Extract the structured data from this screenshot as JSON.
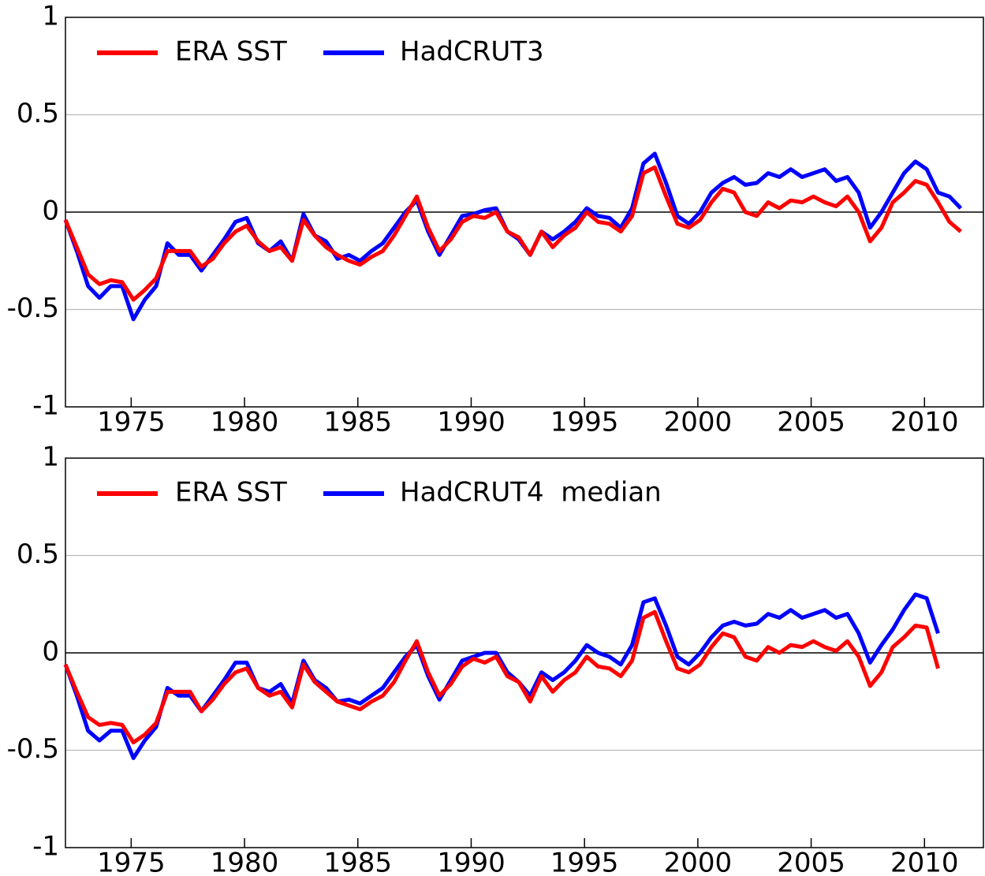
{
  "chart_data": [
    {
      "type": "line",
      "xlim": [
        1972.1,
        2012.6
      ],
      "xticks": [
        1975,
        1980,
        1985,
        1990,
        1995,
        2000,
        2005,
        2010
      ],
      "ylim": [
        -1,
        1
      ],
      "yticks": [
        -1,
        -0.5,
        0,
        0.5,
        1
      ],
      "grid": true,
      "legend": "upper left",
      "x": [
        1972.1,
        1972.6,
        1973.1,
        1973.6,
        1974.1,
        1974.6,
        1975.1,
        1975.6,
        1976.1,
        1976.6,
        1977.1,
        1977.6,
        1978.1,
        1978.6,
        1979.1,
        1979.6,
        1980.1,
        1980.6,
        1981.1,
        1981.6,
        1982.1,
        1982.6,
        1983.1,
        1983.6,
        1984.1,
        1984.6,
        1985.1,
        1985.6,
        1986.1,
        1986.6,
        1987.1,
        1987.6,
        1988.1,
        1988.6,
        1989.1,
        1989.6,
        1990.1,
        1990.6,
        1991.1,
        1991.6,
        1992.1,
        1992.6,
        1993.1,
        1993.6,
        1994.1,
        1994.6,
        1995.1,
        1995.6,
        1996.1,
        1996.6,
        1997.1,
        1997.6,
        1998.1,
        1998.6,
        1999.1,
        1999.6,
        2000.1,
        2000.6,
        2001.1,
        2001.6,
        2002.1,
        2002.6,
        2003.1,
        2003.6,
        2004.1,
        2004.6,
        2005.1,
        2005.6,
        2006.1,
        2006.6,
        2007.1,
        2007.6,
        2008.1,
        2008.6,
        2009.1,
        2009.6,
        2010.1,
        2010.6,
        2011.1,
        2011.6
      ],
      "series": [
        {
          "name": "HadCRUT3",
          "color": "#0000ff",
          "values": [
            -0.04,
            -0.2,
            -0.38,
            -0.44,
            -0.38,
            -0.38,
            -0.55,
            -0.45,
            -0.38,
            -0.16,
            -0.22,
            -0.22,
            -0.3,
            -0.22,
            -0.14,
            -0.05,
            -0.03,
            -0.16,
            -0.2,
            -0.15,
            -0.25,
            -0.01,
            -0.12,
            -0.15,
            -0.24,
            -0.22,
            -0.25,
            -0.2,
            -0.16,
            -0.08,
            0.0,
            0.06,
            -0.1,
            -0.22,
            -0.12,
            -0.02,
            -0.01,
            0.01,
            0.02,
            -0.1,
            -0.14,
            -0.22,
            -0.1,
            -0.14,
            -0.1,
            -0.05,
            0.02,
            -0.02,
            -0.03,
            -0.08,
            0.02,
            0.25,
            0.3,
            0.15,
            -0.02,
            -0.06,
            0.0,
            0.1,
            0.15,
            0.18,
            0.14,
            0.15,
            0.2,
            0.18,
            0.22,
            0.18,
            0.2,
            0.22,
            0.16,
            0.18,
            0.1,
            -0.08,
            0.0,
            0.1,
            0.2,
            0.26,
            0.22,
            0.1,
            0.08,
            0.02
          ]
        },
        {
          "name": "ERA SST",
          "color": "#ff0000",
          "values": [
            -0.04,
            -0.18,
            -0.32,
            -0.37,
            -0.35,
            -0.36,
            -0.45,
            -0.4,
            -0.34,
            -0.2,
            -0.2,
            -0.2,
            -0.28,
            -0.24,
            -0.16,
            -0.1,
            -0.07,
            -0.15,
            -0.2,
            -0.18,
            -0.25,
            -0.04,
            -0.12,
            -0.18,
            -0.22,
            -0.25,
            -0.27,
            -0.23,
            -0.2,
            -0.12,
            -0.02,
            0.08,
            -0.08,
            -0.2,
            -0.14,
            -0.05,
            -0.02,
            -0.03,
            0.0,
            -0.1,
            -0.13,
            -0.22,
            -0.1,
            -0.18,
            -0.12,
            -0.08,
            0.0,
            -0.05,
            -0.06,
            -0.1,
            -0.02,
            0.2,
            0.23,
            0.08,
            -0.06,
            -0.08,
            -0.04,
            0.05,
            0.12,
            0.1,
            0.0,
            -0.02,
            0.05,
            0.02,
            0.06,
            0.05,
            0.08,
            0.05,
            0.03,
            0.08,
            0.0,
            -0.15,
            -0.08,
            0.05,
            0.1,
            0.16,
            0.14,
            0.05,
            -0.05,
            -0.1
          ]
        }
      ],
      "legend_order": [
        "ERA SST",
        "HadCRUT3"
      ]
    },
    {
      "type": "line",
      "xlim": [
        1972.1,
        2012.6
      ],
      "xticks": [
        1975,
        1980,
        1985,
        1990,
        1995,
        2000,
        2005,
        2010
      ],
      "ylim": [
        -1,
        1
      ],
      "yticks": [
        -1,
        -0.5,
        0,
        0.5,
        1
      ],
      "grid": true,
      "legend": "upper left",
      "x": [
        1972.1,
        1972.6,
        1973.1,
        1973.6,
        1974.1,
        1974.6,
        1975.1,
        1975.6,
        1976.1,
        1976.6,
        1977.1,
        1977.6,
        1978.1,
        1978.6,
        1979.1,
        1979.6,
        1980.1,
        1980.6,
        1981.1,
        1981.6,
        1982.1,
        1982.6,
        1983.1,
        1983.6,
        1984.1,
        1984.6,
        1985.1,
        1985.6,
        1986.1,
        1986.6,
        1987.1,
        1987.6,
        1988.1,
        1988.6,
        1989.1,
        1989.6,
        1990.1,
        1990.6,
        1991.1,
        1991.6,
        1992.1,
        1992.6,
        1993.1,
        1993.6,
        1994.1,
        1994.6,
        1995.1,
        1995.6,
        1996.1,
        1996.6,
        1997.1,
        1997.6,
        1998.1,
        1998.6,
        1999.1,
        1999.6,
        2000.1,
        2000.6,
        2001.1,
        2001.6,
        2002.1,
        2002.6,
        2003.1,
        2003.6,
        2004.1,
        2004.6,
        2005.1,
        2005.6,
        2006.1,
        2006.6,
        2007.1,
        2007.6,
        2008.1,
        2008.6,
        2009.1,
        2009.6,
        2010.1,
        2010.6
      ],
      "series": [
        {
          "name": "HadCRUT4  median",
          "color": "#0000ff",
          "values": [
            -0.06,
            -0.22,
            -0.4,
            -0.45,
            -0.4,
            -0.4,
            -0.54,
            -0.45,
            -0.38,
            -0.18,
            -0.22,
            -0.22,
            -0.3,
            -0.22,
            -0.14,
            -0.05,
            -0.05,
            -0.18,
            -0.2,
            -0.16,
            -0.26,
            -0.04,
            -0.14,
            -0.18,
            -0.25,
            -0.24,
            -0.26,
            -0.22,
            -0.18,
            -0.1,
            -0.02,
            0.04,
            -0.12,
            -0.24,
            -0.14,
            -0.04,
            -0.02,
            0.0,
            0.0,
            -0.1,
            -0.15,
            -0.22,
            -0.1,
            -0.14,
            -0.1,
            -0.04,
            0.04,
            0.0,
            -0.02,
            -0.06,
            0.04,
            0.26,
            0.28,
            0.14,
            -0.02,
            -0.06,
            0.0,
            0.08,
            0.14,
            0.16,
            0.14,
            0.15,
            0.2,
            0.18,
            0.22,
            0.18,
            0.2,
            0.22,
            0.18,
            0.2,
            0.1,
            -0.05,
            0.04,
            0.12,
            0.22,
            0.3,
            0.28,
            0.1
          ]
        },
        {
          "name": "ERA SST",
          "color": "#ff0000",
          "values": [
            -0.06,
            -0.2,
            -0.33,
            -0.37,
            -0.36,
            -0.37,
            -0.46,
            -0.42,
            -0.36,
            -0.2,
            -0.2,
            -0.2,
            -0.3,
            -0.24,
            -0.16,
            -0.1,
            -0.08,
            -0.18,
            -0.22,
            -0.2,
            -0.28,
            -0.06,
            -0.15,
            -0.2,
            -0.25,
            -0.27,
            -0.29,
            -0.25,
            -0.22,
            -0.15,
            -0.04,
            0.06,
            -0.1,
            -0.22,
            -0.16,
            -0.07,
            -0.03,
            -0.05,
            -0.02,
            -0.12,
            -0.15,
            -0.25,
            -0.12,
            -0.2,
            -0.14,
            -0.1,
            -0.02,
            -0.07,
            -0.08,
            -0.12,
            -0.04,
            0.18,
            0.21,
            0.06,
            -0.08,
            -0.1,
            -0.06,
            0.03,
            0.1,
            0.08,
            -0.02,
            -0.04,
            0.03,
            0.0,
            0.04,
            0.03,
            0.06,
            0.03,
            0.01,
            0.06,
            -0.02,
            -0.17,
            -0.1,
            0.03,
            0.08,
            0.14,
            0.13,
            -0.08
          ]
        }
      ],
      "legend_order": [
        "ERA SST",
        "HadCRUT4  median"
      ]
    }
  ]
}
